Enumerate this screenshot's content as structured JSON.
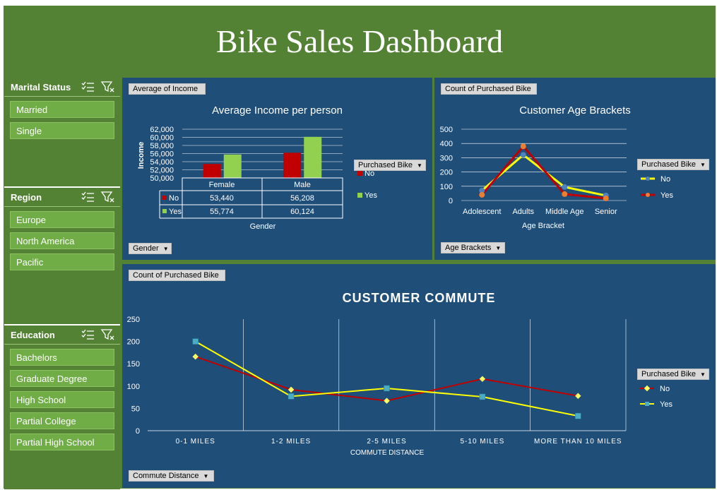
{
  "title": "Bike Sales Dashboard",
  "slicers": {
    "marital": {
      "title": "Marital Status",
      "items": [
        "Married",
        "Single"
      ]
    },
    "region": {
      "title": "Region",
      "items": [
        "Europe",
        "North America",
        "Pacific"
      ]
    },
    "education": {
      "title": "Education",
      "items": [
        "Bachelors",
        "Graduate Degree",
        "High School",
        "Partial College",
        "Partial High School"
      ]
    }
  },
  "income": {
    "value_button": "Average of Income",
    "axis_button": "Gender",
    "legend_button": "Purchased Bike",
    "title": "Average Income per person",
    "ylabel": "Income",
    "xlabel": "Gender",
    "yticks": [
      "62,000",
      "60,000",
      "58,000",
      "56,000",
      "54,000",
      "52,000",
      "50,000"
    ],
    "table": {
      "headers": [
        "Female",
        "Male"
      ],
      "rows": [
        {
          "label": "No",
          "values": [
            "53,440",
            "56,208"
          ]
        },
        {
          "label": "Yes",
          "values": [
            "55,774",
            "60,124"
          ]
        }
      ]
    },
    "legend": [
      "No",
      "Yes"
    ]
  },
  "age": {
    "value_button": "Count of Purchased Bike",
    "axis_button": "Age Brackets",
    "legend_button": "Purchased Bike",
    "title": "Customer Age Brackets",
    "xlabel": "Age Bracket",
    "yticks": [
      "500",
      "400",
      "300",
      "200",
      "100",
      "0"
    ],
    "legend": [
      "No",
      "Yes"
    ]
  },
  "commute": {
    "value_button": "Count of Purchased Bike",
    "axis_button": "Commute Distance",
    "legend_button": "Purchased Bike",
    "title": "CUSTOMER COMMUTE",
    "xlabel": "COMMUTE DISTANCE",
    "yticks": [
      "250",
      "200",
      "150",
      "100",
      "50",
      "0"
    ],
    "legend": [
      "No",
      "Yes"
    ]
  },
  "colors": {
    "green_dark": "#548235",
    "green_btn": "#70ad47",
    "panel_blue": "#1f4e79",
    "no_red": "#c00000",
    "yes_green": "#92d050",
    "line_yellow": "#ffff00"
  },
  "chart_data": [
    {
      "type": "bar",
      "title": "Average Income per person",
      "xlabel": "Gender",
      "ylabel": "Income",
      "categories": [
        "Female",
        "Male"
      ],
      "series": [
        {
          "name": "No",
          "values": [
            53440,
            56208
          ]
        },
        {
          "name": "Yes",
          "values": [
            55774,
            60124
          ]
        }
      ],
      "ylim": [
        50000,
        62000
      ]
    },
    {
      "type": "line",
      "title": "Customer Age Brackets",
      "xlabel": "Age Bracket",
      "categories": [
        "Adolescent",
        "Adults",
        "Middle Age",
        "Senior"
      ],
      "series": [
        {
          "name": "No",
          "values": [
            70,
            320,
            95,
            35
          ]
        },
        {
          "name": "Yes",
          "values": [
            40,
            380,
            45,
            15
          ]
        }
      ],
      "ylim": [
        0,
        500
      ]
    },
    {
      "type": "line",
      "title": "CUSTOMER COMMUTE",
      "xlabel": "COMMUTE DISTANCE",
      "categories": [
        "0-1 MILES",
        "1-2 MILES",
        "2-5 MILES",
        "5-10 MILES",
        "MORE THAN 10 MILES"
      ],
      "series": [
        {
          "name": "No",
          "values": [
            166,
            92,
            67,
            116,
            78
          ]
        },
        {
          "name": "Yes",
          "values": [
            200,
            77,
            95,
            76,
            33
          ]
        }
      ],
      "ylim": [
        0,
        250
      ]
    }
  ]
}
